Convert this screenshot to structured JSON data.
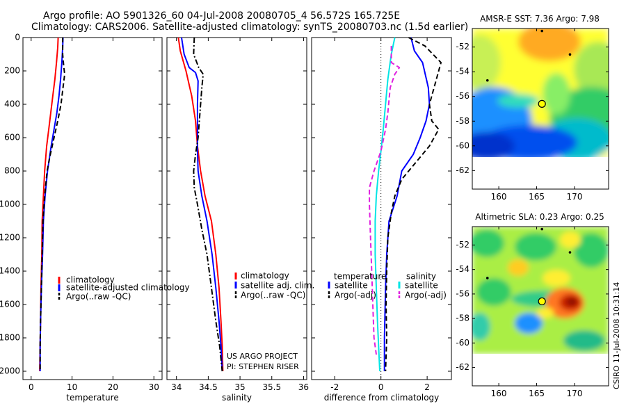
{
  "title": {
    "line1": "Argo profile: AO 5901326_60 04-Jul-2008 20080705_4 56.572S 165.725E",
    "line2": "Climatology: CARS2006. Satellite-adjusted climatology: synTS_20080703.nc (1.5d earlier)"
  },
  "project": {
    "line1": "US ARGO PROJECT",
    "line2": "PI: STEPHEN RISER"
  },
  "footer": "CSIRO 11-Jul-2008 10:31:14",
  "colors": {
    "climatology": "#ff0000",
    "satellite": "#0000ff",
    "argo": "#000000",
    "salinity_satellite": "#00e5e5",
    "salinity_argo": "#e020e0"
  },
  "chart_data": [
    {
      "type": "line",
      "xlabel": "temperature",
      "xlim": [
        -2,
        32
      ],
      "xticks": [
        0,
        10,
        20,
        30
      ],
      "ylim": [
        2050,
        0
      ],
      "yticks": [
        0,
        200,
        400,
        600,
        800,
        1000,
        1200,
        1400,
        1600,
        1800,
        2000
      ],
      "legend_position": "bottom-left",
      "series": [
        {
          "name": "climatology",
          "color": "#ff0000",
          "dash": "solid",
          "points": [
            [
              6.6,
              0
            ],
            [
              6.5,
              60
            ],
            [
              6.2,
              150
            ],
            [
              5.8,
              250
            ],
            [
              5.3,
              350
            ],
            [
              4.8,
              450
            ],
            [
              4.3,
              550
            ],
            [
              3.8,
              650
            ],
            [
              3.3,
              800
            ],
            [
              3.0,
              950
            ],
            [
              2.7,
              1100
            ],
            [
              2.6,
              1300
            ],
            [
              2.4,
              1500
            ],
            [
              2.3,
              1700
            ],
            [
              2.2,
              1850
            ],
            [
              2.1,
              2000
            ]
          ]
        },
        {
          "name": "satellite-adjusted climatology",
          "color": "#0000ff",
          "dash": "solid",
          "points": [
            [
              7.8,
              0
            ],
            [
              7.7,
              60
            ],
            [
              7.5,
              150
            ],
            [
              7.2,
              250
            ],
            [
              6.8,
              350
            ],
            [
              6.3,
              450
            ],
            [
              5.6,
              550
            ],
            [
              4.9,
              650
            ],
            [
              4.0,
              800
            ],
            [
              3.4,
              950
            ],
            [
              3.0,
              1100
            ],
            [
              2.8,
              1300
            ],
            [
              2.5,
              1500
            ],
            [
              2.3,
              1700
            ],
            [
              2.2,
              1850
            ],
            [
              2.2,
              2000
            ]
          ]
        },
        {
          "name": "Argo(..raw -QC)",
          "color": "#000000",
          "dash": "dash",
          "points": [
            [
              7.7,
              0
            ],
            [
              7.7,
              100
            ],
            [
              8.0,
              180
            ],
            [
              8.2,
              220
            ],
            [
              7.8,
              300
            ],
            [
              7.3,
              400
            ],
            [
              6.5,
              500
            ],
            [
              5.6,
              600
            ],
            [
              4.7,
              700
            ],
            [
              3.9,
              800
            ],
            [
              3.3,
              950
            ],
            [
              2.9,
              1100
            ],
            [
              2.7,
              1300
            ],
            [
              2.5,
              1500
            ],
            [
              2.3,
              1700
            ],
            [
              2.2,
              1850
            ],
            [
              2.2,
              2000
            ]
          ]
        }
      ]
    },
    {
      "type": "line",
      "xlabel": "salinity",
      "xlim": [
        33.85,
        36.05
      ],
      "xticks": [
        34,
        34.5,
        35,
        35.5,
        36
      ],
      "ylim": [
        2050,
        0
      ],
      "yticks": [
        0,
        200,
        400,
        600,
        800,
        1000,
        1200,
        1400,
        1600,
        1800,
        2000
      ],
      "legend_position": "bottom-right",
      "series": [
        {
          "name": "climatology",
          "color": "#ff0000",
          "dash": "solid",
          "points": [
            [
              34.03,
              0
            ],
            [
              34.06,
              80
            ],
            [
              34.15,
              200
            ],
            [
              34.24,
              350
            ],
            [
              34.3,
              500
            ],
            [
              34.33,
              650
            ],
            [
              34.38,
              800
            ],
            [
              34.45,
              950
            ],
            [
              34.55,
              1100
            ],
            [
              34.62,
              1300
            ],
            [
              34.67,
              1500
            ],
            [
              34.7,
              1700
            ],
            [
              34.72,
              1850
            ],
            [
              34.73,
              2000
            ]
          ]
        },
        {
          "name": "satellite adj. clim.",
          "color": "#0000ff",
          "dash": "solid",
          "points": [
            [
              34.08,
              0
            ],
            [
              34.12,
              100
            ],
            [
              34.2,
              180
            ],
            [
              34.3,
              210
            ],
            [
              34.34,
              260
            ],
            [
              34.33,
              400
            ],
            [
              34.33,
              550
            ],
            [
              34.33,
              680
            ],
            [
              34.34,
              800
            ],
            [
              34.4,
              950
            ],
            [
              34.48,
              1100
            ],
            [
              34.56,
              1300
            ],
            [
              34.62,
              1500
            ],
            [
              34.67,
              1700
            ],
            [
              34.7,
              1850
            ],
            [
              34.72,
              2000
            ]
          ]
        },
        {
          "name": "Argo(..raw -QC)",
          "color": "#000000",
          "dash": "dashdot",
          "points": [
            [
              34.28,
              0
            ],
            [
              34.27,
              100
            ],
            [
              34.35,
              180
            ],
            [
              34.42,
              220
            ],
            [
              34.4,
              300
            ],
            [
              34.37,
              450
            ],
            [
              34.34,
              600
            ],
            [
              34.3,
              700
            ],
            [
              34.27,
              800
            ],
            [
              34.28,
              900
            ],
            [
              34.33,
              1000
            ],
            [
              34.4,
              1150
            ],
            [
              34.48,
              1300
            ],
            [
              34.55,
              1500
            ],
            [
              34.62,
              1700
            ],
            [
              34.68,
              1850
            ],
            [
              34.72,
              2000
            ]
          ]
        }
      ]
    },
    {
      "type": "line",
      "xlabel": "difference from climatology",
      "xlim": [
        -3,
        3.05
      ],
      "xticks": [
        -2,
        0,
        2
      ],
      "ylim": [
        2050,
        0
      ],
      "yticks": [
        0,
        200,
        400,
        600,
        800,
        1000,
        1200,
        1400,
        1600,
        1800,
        2000
      ],
      "zero_line": true,
      "legend_position": "bottom",
      "legend_headers": [
        "temperature",
        "salinity"
      ],
      "series": [
        {
          "name": "satellite",
          "group": "temperature",
          "color": "#0000ff",
          "dash": "solid",
          "points": [
            [
              1.3,
              0
            ],
            [
              1.45,
              80
            ],
            [
              1.8,
              150
            ],
            [
              2.05,
              300
            ],
            [
              2.1,
              400
            ],
            [
              1.95,
              500
            ],
            [
              1.7,
              600
            ],
            [
              1.4,
              700
            ],
            [
              0.9,
              800
            ],
            [
              0.7,
              950
            ],
            [
              0.35,
              1100
            ],
            [
              0.25,
              1300
            ],
            [
              0.2,
              1500
            ],
            [
              0.15,
              1800
            ],
            [
              0.15,
              2000
            ]
          ]
        },
        {
          "name": "Argo(-adj)",
          "group": "temperature",
          "color": "#000000",
          "dash": "dash",
          "points": [
            [
              1.2,
              0
            ],
            [
              1.9,
              50
            ],
            [
              2.6,
              150
            ],
            [
              2.4,
              250
            ],
            [
              2.1,
              400
            ],
            [
              2.2,
              500
            ],
            [
              2.5,
              550
            ],
            [
              2.1,
              650
            ],
            [
              1.5,
              750
            ],
            [
              0.9,
              850
            ],
            [
              0.6,
              950
            ],
            [
              0.45,
              1050
            ],
            [
              0.3,
              1200
            ],
            [
              0.25,
              1400
            ],
            [
              0.22,
              1600
            ],
            [
              0.25,
              1800
            ],
            [
              0.2,
              2000
            ]
          ]
        },
        {
          "name": "satellite",
          "group": "salinity",
          "color": "#00e5e5",
          "dash": "solid",
          "points": [
            [
              0.6,
              0
            ],
            [
              0.45,
              100
            ],
            [
              0.3,
              250
            ],
            [
              0.2,
              400
            ],
            [
              0.1,
              550
            ],
            [
              0.0,
              680
            ],
            [
              -0.1,
              800
            ],
            [
              -0.2,
              950
            ],
            [
              -0.25,
              1100
            ],
            [
              -0.25,
              1300
            ],
            [
              -0.2,
              1500
            ],
            [
              -0.15,
              1700
            ],
            [
              -0.1,
              1850
            ],
            [
              -0.05,
              2000
            ]
          ]
        },
        {
          "name": "Argo(-adj)",
          "group": "salinity",
          "color": "#e020e0",
          "dash": "dash",
          "points": [
            [
              0.45,
              50
            ],
            [
              0.45,
              150
            ],
            [
              0.8,
              180
            ],
            [
              0.6,
              220
            ],
            [
              0.4,
              300
            ],
            [
              0.3,
              450
            ],
            [
              0.2,
              550
            ],
            [
              0.0,
              680
            ],
            [
              -0.3,
              800
            ],
            [
              -0.5,
              900
            ],
            [
              -0.5,
              1000
            ],
            [
              -0.45,
              1200
            ],
            [
              -0.4,
              1400
            ],
            [
              -0.35,
              1600
            ],
            [
              -0.3,
              1800
            ],
            [
              -0.2,
              1900
            ]
          ]
        }
      ]
    },
    {
      "type": "heatmap",
      "title": "AMSR-E SST: 7.36 Argo: 7.98",
      "xlim": [
        156.5,
        174.5
      ],
      "xticks": [
        160,
        165,
        170
      ],
      "ylim": [
        -63.5,
        -50.5
      ],
      "yticks": [
        -52,
        -54,
        -56,
        -58,
        -60,
        -62
      ],
      "data_extent_lat": [
        -60,
        -50.5
      ],
      "argo_marker": [
        165.7,
        -56.6
      ],
      "track_points": [
        [
          165.7,
          -50.7
        ],
        [
          169.4,
          -52.6
        ],
        [
          158.5,
          -54.7
        ]
      ]
    },
    {
      "type": "heatmap",
      "title": "Altimetric SLA: 0.23 Argo: 0.25",
      "xlim": [
        156.5,
        174.5
      ],
      "xticks": [
        160,
        165,
        170
      ],
      "ylim": [
        -63.5,
        -50.5
      ],
      "yticks": [
        -52,
        -54,
        -56,
        -58,
        -60,
        -62
      ],
      "data_extent_lat": [
        -60,
        -50.5
      ],
      "argo_marker": [
        165.7,
        -56.6
      ],
      "track_points": [
        [
          165.7,
          -50.7
        ],
        [
          169.4,
          -52.6
        ],
        [
          158.5,
          -54.7
        ]
      ]
    }
  ]
}
